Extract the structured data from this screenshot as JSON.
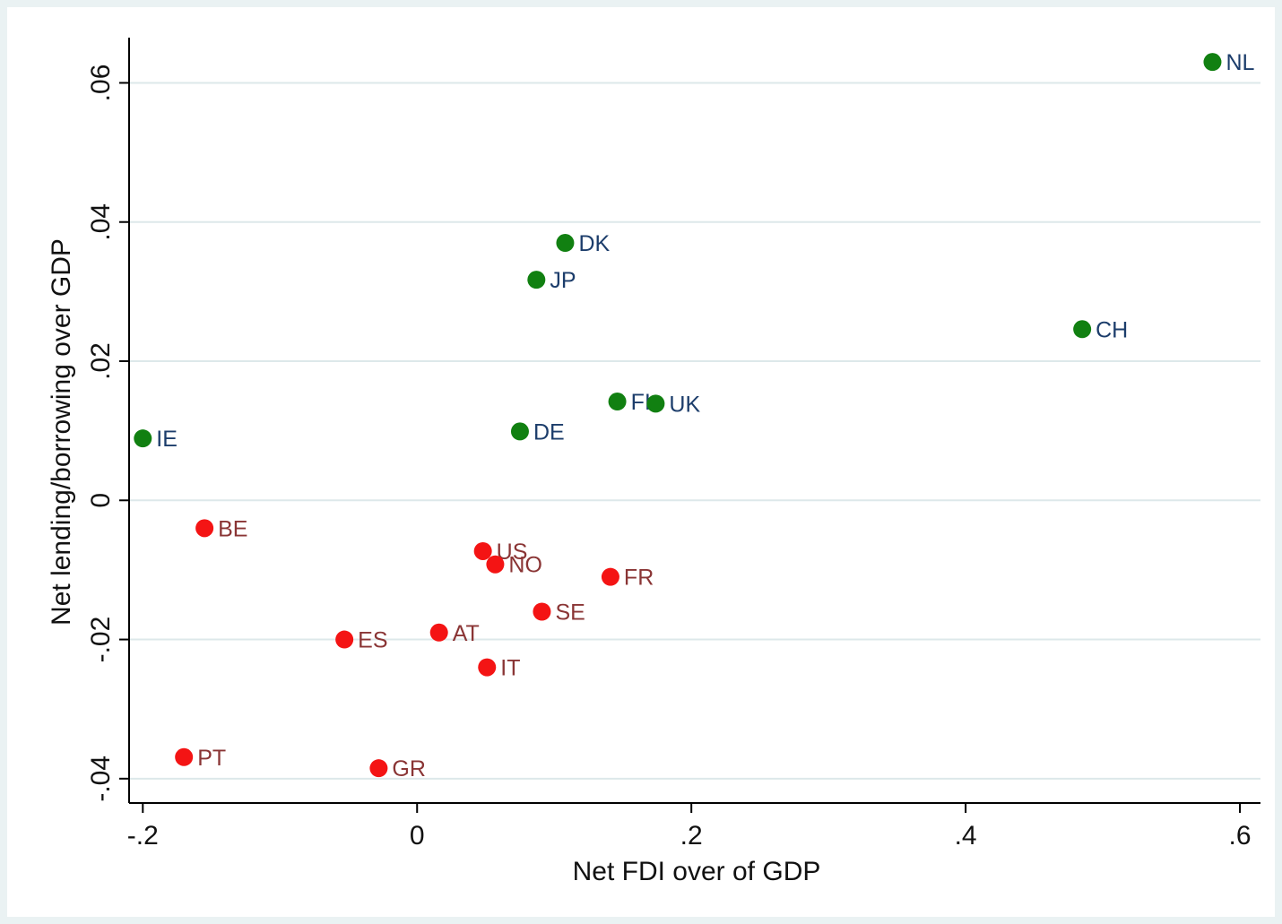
{
  "chart_data": {
    "type": "scatter",
    "title": "",
    "xlabel": "Net FDI over of GDP",
    "ylabel": "Net lending/borrowing over GDP",
    "xlim": [
      -0.21,
      0.615
    ],
    "ylim": [
      -0.0435,
      0.0665
    ],
    "x_ticks": [
      {
        "value": -0.2,
        "label": "-.2"
      },
      {
        "value": 0,
        "label": "0"
      },
      {
        "value": 0.2,
        "label": ".2"
      },
      {
        "value": 0.4,
        "label": ".4"
      },
      {
        "value": 0.6,
        "label": ".6"
      }
    ],
    "y_ticks": [
      {
        "value": -0.04,
        "label": "-.04"
      },
      {
        "value": -0.02,
        "label": "-.02"
      },
      {
        "value": 0,
        "label": "0"
      },
      {
        "value": 0.02,
        "label": ".02"
      },
      {
        "value": 0.04,
        "label": ".04"
      },
      {
        "value": 0.06,
        "label": ".06"
      }
    ],
    "grid": true,
    "legend": "none",
    "series": [
      {
        "color": "#118011",
        "label_color": "#1c3d6b",
        "points": [
          {
            "label": "NL",
            "x": 0.58,
            "y": 0.063
          },
          {
            "label": "DK",
            "x": 0.108,
            "y": 0.037
          },
          {
            "label": "JP",
            "x": 0.087,
            "y": 0.0317
          },
          {
            "label": "CH",
            "x": 0.485,
            "y": 0.0246
          },
          {
            "label": "FI",
            "x": 0.146,
            "y": 0.0142
          },
          {
            "label": "UK",
            "x": 0.174,
            "y": 0.0139
          },
          {
            "label": "DE",
            "x": 0.075,
            "y": 0.0099
          },
          {
            "label": "IE",
            "x": -0.2,
            "y": 0.0089
          }
        ]
      },
      {
        "color": "#f41414",
        "label_color": "#8a3535",
        "points": [
          {
            "label": "BE",
            "x": -0.155,
            "y": -0.004
          },
          {
            "label": "US",
            "x": 0.048,
            "y": -0.0073
          },
          {
            "label": "NO",
            "x": 0.057,
            "y": -0.0092
          },
          {
            "label": "FR",
            "x": 0.141,
            "y": -0.011
          },
          {
            "label": "SE",
            "x": 0.091,
            "y": -0.016
          },
          {
            "label": "AT",
            "x": 0.016,
            "y": -0.019
          },
          {
            "label": "ES",
            "x": -0.053,
            "y": -0.02
          },
          {
            "label": "IT",
            "x": 0.051,
            "y": -0.024
          },
          {
            "label": "PT",
            "x": -0.17,
            "y": -0.0369
          },
          {
            "label": "GR",
            "x": -0.028,
            "y": -0.0385
          }
        ]
      }
    ]
  }
}
